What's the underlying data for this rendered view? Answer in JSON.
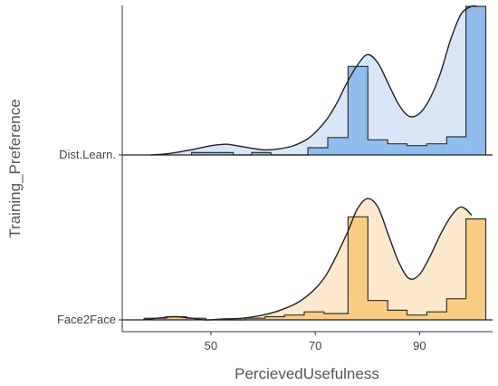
{
  "chart_data": {
    "type": "area",
    "subtype": "ridgeline (density curves with histograms)",
    "title": "",
    "xlabel": "PercievedUsefulness",
    "ylabel": "Training_Preference",
    "xlim": [
      33,
      104
    ],
    "x_ticks": [
      50,
      70,
      90
    ],
    "categories": [
      "Dist.Learn.",
      "Face2Face"
    ],
    "grid": false,
    "legend": "none",
    "series": [
      {
        "name": "Dist.Learn.",
        "color": "#4A90E2",
        "density_fill": "#D9E6F7",
        "hist_fill": "#90BDEE",
        "histogram": {
          "bin_edges": [
            46.3,
            54.3,
            57.8,
            61.5,
            68.6,
            72.4,
            76.3,
            80.1,
            83.9,
            87.6,
            91.4,
            95.2,
            98.9,
            102.7
          ],
          "heights": [
            0.016,
            0.0,
            0.016,
            0.0,
            0.049,
            0.117,
            0.595,
            0.102,
            0.075,
            0.063,
            0.075,
            0.122,
            1.0
          ]
        },
        "density": {
          "x": [
            38.5,
            42,
            46,
            50,
            53,
            56,
            60,
            63,
            66,
            69,
            72,
            74,
            76,
            78,
            80,
            82,
            84,
            86,
            88,
            90,
            92,
            94,
            96,
            98,
            100,
            101
          ],
          "y": [
            0.0,
            0.01,
            0.033,
            0.062,
            0.072,
            0.056,
            0.035,
            0.041,
            0.064,
            0.12,
            0.23,
            0.34,
            0.48,
            0.6,
            0.675,
            0.62,
            0.48,
            0.34,
            0.26,
            0.28,
            0.38,
            0.55,
            0.78,
            0.95,
            1.0,
            1.0
          ]
        }
      },
      {
        "name": "Face2Face",
        "color": "#E8A630",
        "density_fill": "#FCE9CD",
        "hist_fill": "#FACC83",
        "histogram": {
          "bin_edges": [
            37.2,
            41.5,
            45.3,
            49.0,
            56.6,
            60.4,
            64.1,
            67.9,
            71.7,
            76.3,
            80.1,
            83.9,
            87.6,
            91.4,
            95.2,
            98.9,
            102.7
          ],
          "heights": [
            0.012,
            0.023,
            0.012,
            0.0,
            0.012,
            0.023,
            0.035,
            0.058,
            0.046,
            0.748,
            0.14,
            0.07,
            0.035,
            0.058,
            0.153,
            0.733
          ]
        },
        "density": {
          "x": [
            37,
            40,
            43,
            46,
            49,
            52,
            56,
            60,
            64,
            68,
            72,
            76,
            78,
            80,
            82,
            84,
            86,
            88,
            90,
            92,
            94,
            96,
            98,
            100
          ],
          "y": [
            0.0,
            0.014,
            0.023,
            0.014,
            0.0,
            0.006,
            0.012,
            0.035,
            0.08,
            0.16,
            0.32,
            0.62,
            0.8,
            0.88,
            0.82,
            0.62,
            0.42,
            0.3,
            0.33,
            0.46,
            0.62,
            0.75,
            0.82,
            0.76
          ]
        }
      }
    ]
  }
}
